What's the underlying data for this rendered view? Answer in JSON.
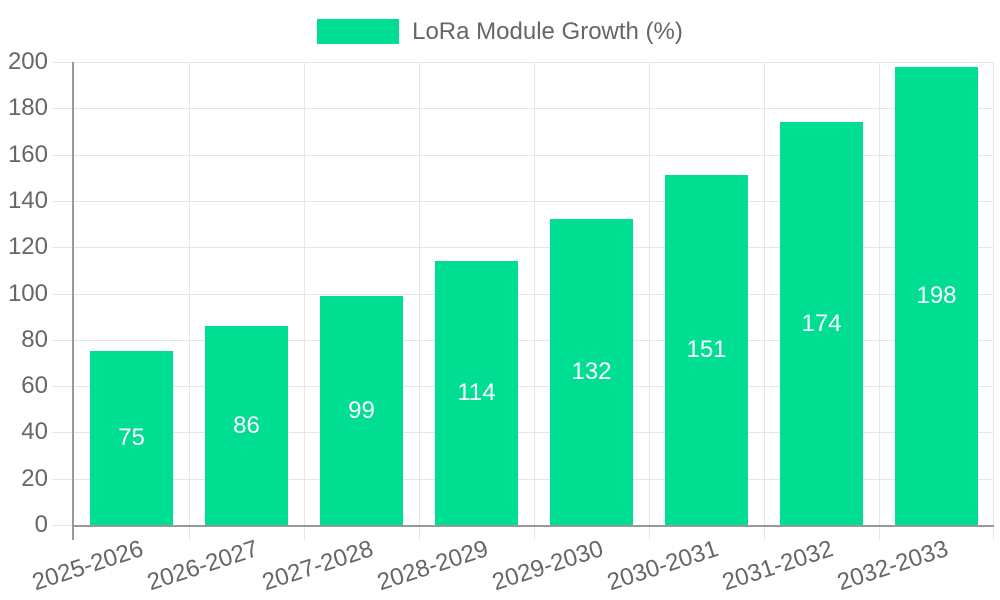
{
  "legend": {
    "label": "LoRa Module Growth (%)"
  },
  "colors": {
    "bar": "#00DE92",
    "bar_label": "#ffffff",
    "axis_text": "#666666",
    "grid": "#e6e6e6",
    "axis_line": "#999999",
    "background": "#ffffff"
  },
  "chart_data": {
    "type": "bar",
    "title": "",
    "series_name": "LoRa Module Growth (%)",
    "categories": [
      "2025-2026",
      "2026-2027",
      "2027-2028",
      "2028-2029",
      "2029-2030",
      "2030-2031",
      "2031-2032",
      "2032-2033"
    ],
    "values": [
      75,
      86,
      99,
      114,
      132,
      151,
      174,
      198
    ],
    "xlabel": "",
    "ylabel": "",
    "ylim": [
      0,
      200
    ],
    "ytick_step": 20,
    "yticks": [
      0,
      20,
      40,
      60,
      80,
      100,
      120,
      140,
      160,
      180,
      200
    ],
    "grid": true,
    "legend_position": "top-center",
    "bar_labels_shown": true,
    "bar_label_position": "center",
    "x_label_rotation_deg": -18
  }
}
